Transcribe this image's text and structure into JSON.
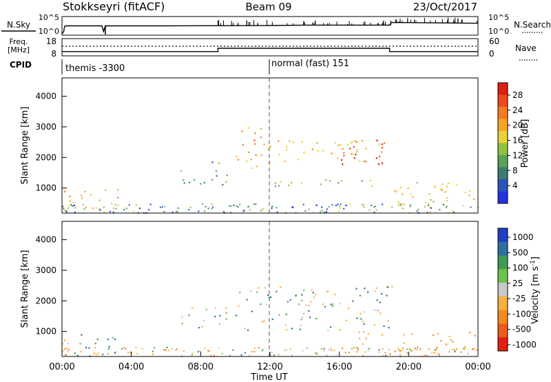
{
  "header": {
    "station": "Stokkseyri (fitACF)",
    "beam": "Beam 09",
    "date": "23/Oct/2017"
  },
  "noise_panel": {
    "left_label": "N.Sky",
    "right_label": "N.Search",
    "left_ticks": [
      "10^5",
      "10^0"
    ],
    "right_ticks": [
      "10^5",
      "10^0"
    ]
  },
  "freq_panel": {
    "left_label_line1": "Freq.",
    "left_label_line2": "[MHz]",
    "right_label": "Nave",
    "left_ticks": [
      "18",
      "8"
    ],
    "right_ticks": [
      "60",
      "0"
    ]
  },
  "cpid": {
    "label": "CPID",
    "modes": [
      {
        "name": "themis -3300"
      },
      {
        "name": "normal (fast) 151"
      }
    ]
  },
  "x_axis": {
    "label": "Time UT",
    "ticks": [
      "00:00",
      "04:00",
      "08:00",
      "12:00",
      "16:00",
      "20:00",
      "00:00"
    ]
  },
  "power_colorbar": {
    "label": "Power [dB]",
    "ticks": [
      "28",
      "24",
      "20",
      "16",
      "12",
      "8",
      "4"
    ],
    "colors": [
      "#2233dd",
      "#2a55b8",
      "#3b7d6e",
      "#5aa257",
      "#8fc144",
      "#e8d23c",
      "#f5a623",
      "#f47b20",
      "#ee4a1c",
      "#e01f12"
    ]
  },
  "velocity_colorbar": {
    "label": "Velocity [m s",
    "label_superscript": "-1",
    "label_close": "]",
    "ticks": [
      "1000",
      "500",
      "100",
      "25",
      "-25",
      "-100",
      "-500",
      "-1000"
    ],
    "colors": [
      "#1f3fbf",
      "#2f6fa0",
      "#3f9a55",
      "#6cc24a",
      "#c8c8c8",
      "#f6b040",
      "#f28a1e",
      "#ee5a1a",
      "#e01f12"
    ]
  },
  "chart_data": [
    {
      "type": "line",
      "title": "N.Sky",
      "x_range_hours": [
        0,
        24
      ],
      "series": [
        {
          "x": [
            0,
            0.1,
            0.15,
            0.3,
            2.3,
            2.4,
            2.5,
            6,
            12,
            14,
            18.9,
            19.0,
            24
          ],
          "y": [
            0.3,
            1.0,
            2.4,
            2.5,
            2.5,
            1.0,
            2.5,
            2.5,
            2.6,
            2.7,
            2.7,
            3.4,
            3.2
          ]
        }
      ]
    },
    {
      "type": "line",
      "title": "Freq.",
      "series": [
        {
          "x": [
            0,
            9,
            9,
            18.9,
            18.9,
            24
          ],
          "y": [
            10.5,
            10.5,
            12.4,
            12.4,
            10.5,
            10.5
          ]
        }
      ]
    },
    {
      "type": "heatmap",
      "ylabel": "Slant Range [km]",
      "xlabel": "Time UT",
      "ylim": [
        180,
        4600
      ],
      "yticks": [
        1000,
        2000,
        3000,
        4000
      ],
      "zlabel": "Power [dB]",
      "zlim": [
        0,
        32
      ],
      "features": [
        {
          "t0": 0,
          "t1": 3.2,
          "r0": 200,
          "r1": 1000,
          "level": 20
        },
        {
          "t0": 6.8,
          "t1": 9.5,
          "r0": 1100,
          "r1": 1900,
          "level": 10
        },
        {
          "t0": 10.0,
          "t1": 11.5,
          "r0": 1400,
          "r1": 3000,
          "level": 22
        },
        {
          "t0": 11.5,
          "t1": 19.0,
          "r0": 1800,
          "r1": 2600,
          "level": 20
        },
        {
          "t0": 16.0,
          "t1": 18.8,
          "r0": 1800,
          "r1": 2600,
          "level": 28
        },
        {
          "t0": 10.5,
          "t1": 19.0,
          "r0": 1050,
          "r1": 1300,
          "level": 14
        },
        {
          "t0": 19.0,
          "t1": 24.0,
          "r0": 200,
          "r1": 1200,
          "level": 18
        }
      ]
    },
    {
      "type": "heatmap",
      "ylabel": "Slant Range [km]",
      "xlabel": "Time UT",
      "ylim": [
        180,
        4600
      ],
      "yticks": [
        1000,
        2000,
        3000,
        4000
      ],
      "zlabel": "Velocity [m s-1]",
      "zlim": [
        -1000,
        1000
      ],
      "features": [
        {
          "t0": 0,
          "t1": 3.2,
          "r0": 200,
          "r1": 1000,
          "level": 0
        },
        {
          "t0": 6.8,
          "t1": 9.5,
          "r0": 1100,
          "r1": 1900,
          "level": 0
        },
        {
          "t0": 10.0,
          "t1": 19.0,
          "r0": 1050,
          "r1": 2500,
          "level": 0
        },
        {
          "t0": 17.0,
          "t1": 19.0,
          "r0": 600,
          "r1": 1100,
          "level": -300
        },
        {
          "t0": 19.0,
          "t1": 24.0,
          "r0": 300,
          "r1": 1000,
          "level": -600
        }
      ]
    }
  ]
}
